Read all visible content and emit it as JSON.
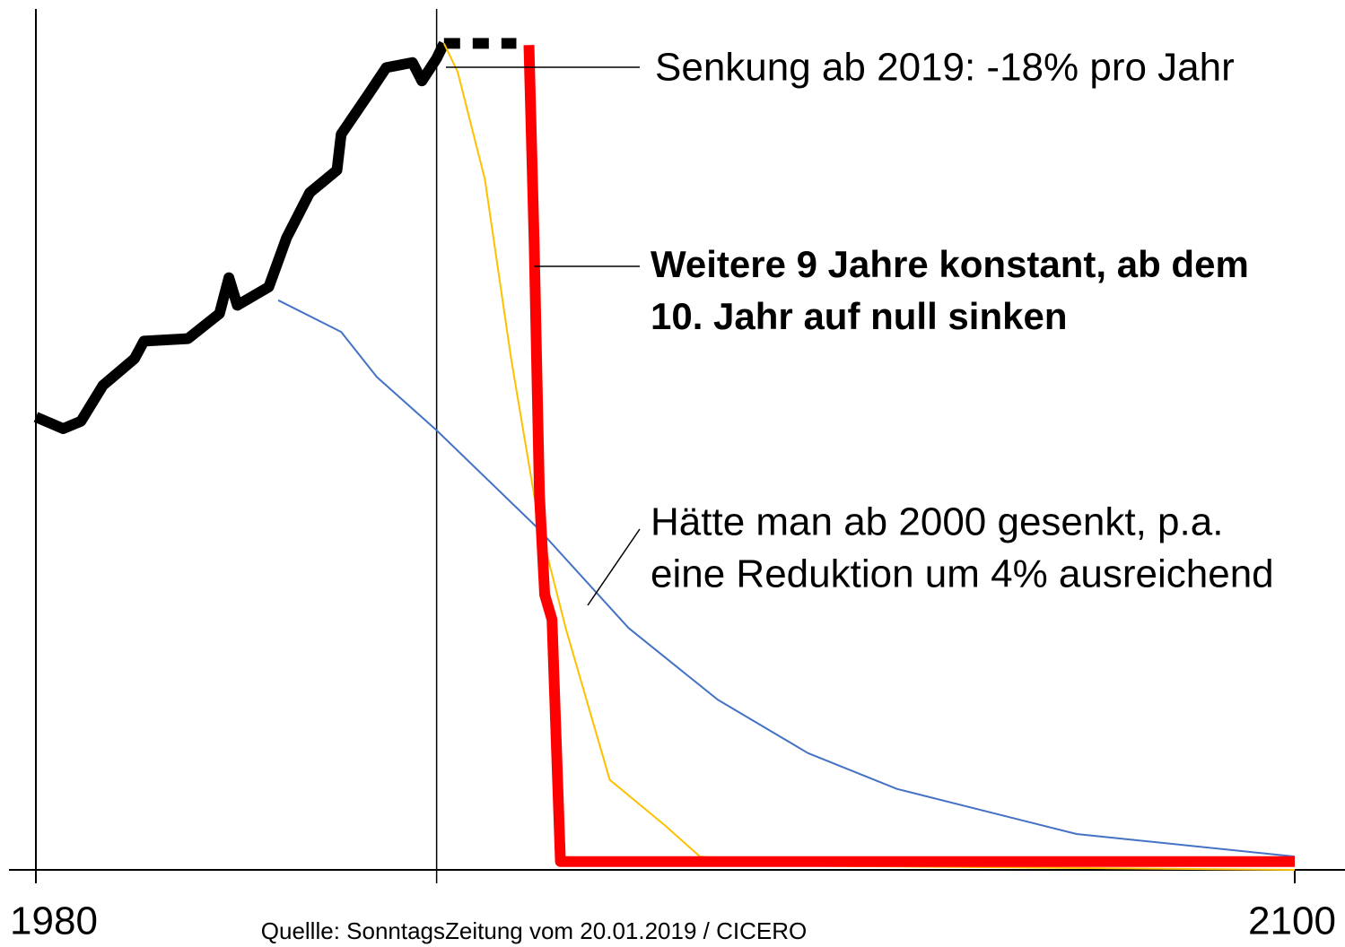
{
  "chart_data": {
    "type": "line",
    "xlim": [
      1980,
      2100
    ],
    "ylim": [
      0,
      100
    ],
    "xticks": [
      1980,
      2100
    ],
    "reference_x": 2018.2,
    "source": "Quellle: SonntagsZeitung vom 20.01.2019 / CICERO",
    "series": [
      {
        "color": "#000000",
        "width": 12,
        "x": [
          1980,
          1982.6,
          1984.3,
          1986.4,
          1989.4,
          1990.3,
          1994.5,
          1997.5,
          1998.4,
          1999.2,
          2002.2,
          2003.9,
          2006.1,
          2008.7,
          2009.1,
          2011.7,
          2013.4,
          2015.9,
          2016.8,
          2018.2,
          2018.9
        ],
        "values": [
          54.3,
          52.9,
          53.8,
          58.1,
          61.3,
          63.4,
          63.7,
          66.7,
          71.0,
          67.7,
          69.9,
          75.8,
          81.2,
          83.9,
          88.2,
          93.0,
          96.2,
          96.8,
          94.6,
          97.3,
          99.1
        ]
      },
      {
        "color": "#000000",
        "width": 12,
        "dashed": true,
        "x": [
          2018.9,
          2025.8
        ],
        "values": [
          99.1,
          99.1
        ]
      },
      {
        "color": "#4472c4",
        "width": 2,
        "x": [
          2003.1,
          2009.1,
          2012.5,
          2018.2,
          2027.9,
          2036.5,
          2045,
          2053.6,
          2062.1,
          2079.2,
          2100
        ],
        "values": [
          68.3,
          64.5,
          59.1,
          52.7,
          40.9,
          29,
          20.4,
          14,
          9.7,
          4.3,
          1.6
        ]
      },
      {
        "color": "#ffc000",
        "width": 2,
        "x": [
          2018.9,
          2020.2,
          2022.8,
          2025.3,
          2027.9,
          2030.5,
          2034.7,
          2039.9,
          2043.3,
          2053.6,
          2100
        ],
        "values": [
          99.1,
          95.7,
          82.8,
          61.3,
          41.9,
          29,
          10.8,
          5.4,
          1.6,
          0.5,
          0
        ]
      },
      {
        "color": "#ff0000",
        "width": 12,
        "x": [
          2027,
          2027.5,
          2028,
          2028.5,
          2029.2,
          2030,
          2100
        ],
        "values": [
          98.9,
          75,
          45,
          33,
          30,
          1,
          1
        ]
      }
    ],
    "annotations": [
      {
        "lines": [
          "Senkung ab 2019: -18% pro Jahr"
        ],
        "bold": false
      },
      {
        "lines": [
          "Weitere 9 Jahre konstant, ab dem",
          "10. Jahr auf null sinken"
        ],
        "bold": true
      },
      {
        "lines": [
          "Hätte man ab 2000 gesenkt, p.a.",
          "eine Reduktion um 4% ausreichend"
        ],
        "bold": false
      }
    ]
  }
}
